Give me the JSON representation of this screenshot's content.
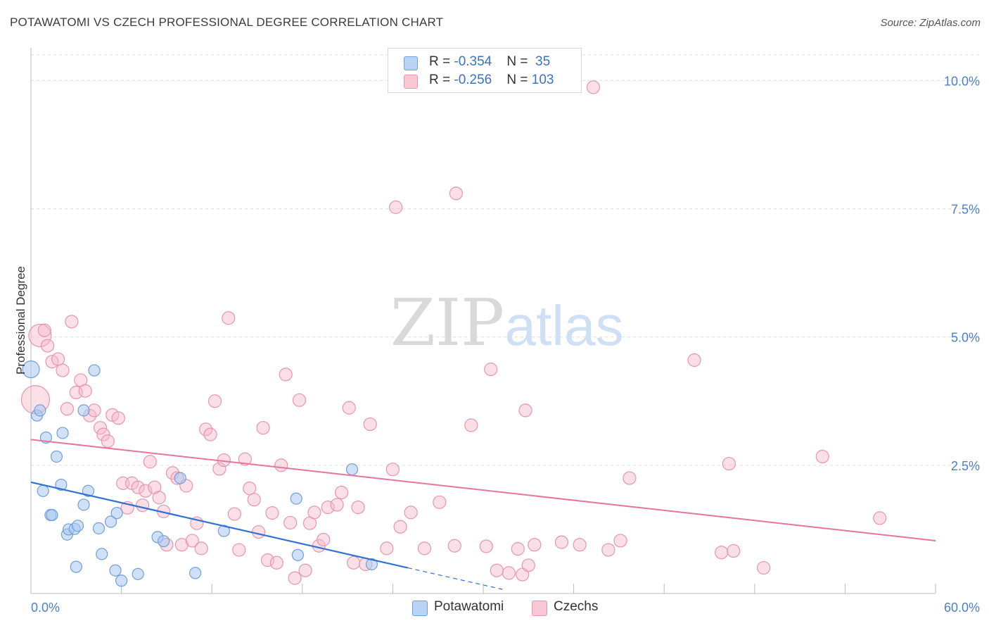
{
  "title": "POTAWATOMI VS CZECH PROFESSIONAL DEGREE CORRELATION CHART",
  "source": "Source: ZipAtlas.com",
  "watermark": {
    "zip": "ZIP",
    "atlas": "atlas"
  },
  "legend": {
    "rows": [
      {
        "r_label": "R = ",
        "r_value": "-0.354",
        "n_label": "N = ",
        "n_value": " 35"
      },
      {
        "r_label": "R = ",
        "r_value": "-0.256",
        "n_label": "N = ",
        "n_value": "103"
      }
    ],
    "bottom": [
      "Potawatomi",
      "Czechs"
    ]
  },
  "colors": {
    "potawatomi_fill": "#a9c8f0",
    "potawatomi_stroke": "#6f9fdc",
    "potawatomi_line": "#2f72d0",
    "czech_fill": "#f7b8ca",
    "czech_stroke": "#e994ae",
    "czech_line": "#e8749b",
    "tick": "#4a80c8",
    "grid": "#dddddd"
  },
  "chart_data": {
    "type": "scatter",
    "title": "POTAWATOMI VS CZECH PROFESSIONAL DEGREE CORRELATION CHART",
    "xlabel": "",
    "ylabel": "Professional Degree",
    "xlim": [
      0,
      60
    ],
    "ylim": [
      0,
      10.5
    ],
    "x_tick_labels": [
      "0.0%",
      "60.0%"
    ],
    "y_ticks": [
      2.5,
      5.0,
      7.5,
      10.0
    ],
    "y_tick_labels": [
      "2.5%",
      "5.0%",
      "7.5%",
      "10.0%"
    ],
    "series": [
      {
        "name": "Potawatomi",
        "r": -0.354,
        "n": 35,
        "trend": {
          "x0": 0,
          "y0": 2.17,
          "x1": 25.0,
          "y1": 0.5,
          "dash_to_x": 31.5
        },
        "points": [
          {
            "x": 0.0,
            "y": 4.37,
            "s": 12
          },
          {
            "x": 0.4,
            "y": 3.47
          },
          {
            "x": 0.6,
            "y": 3.57
          },
          {
            "x": 1.0,
            "y": 3.04
          },
          {
            "x": 0.8,
            "y": 2.0
          },
          {
            "x": 1.7,
            "y": 2.67
          },
          {
            "x": 2.0,
            "y": 2.12
          },
          {
            "x": 2.1,
            "y": 3.13
          },
          {
            "x": 1.3,
            "y": 1.53
          },
          {
            "x": 1.4,
            "y": 1.53
          },
          {
            "x": 2.4,
            "y": 1.15
          },
          {
            "x": 2.5,
            "y": 1.25
          },
          {
            "x": 2.9,
            "y": 1.26
          },
          {
            "x": 3.1,
            "y": 1.32
          },
          {
            "x": 3.5,
            "y": 1.73
          },
          {
            "x": 3.8,
            "y": 2.0
          },
          {
            "x": 3.5,
            "y": 3.57
          },
          {
            "x": 4.2,
            "y": 4.35
          },
          {
            "x": 4.5,
            "y": 1.27
          },
          {
            "x": 4.7,
            "y": 0.77
          },
          {
            "x": 3.0,
            "y": 0.52
          },
          {
            "x": 5.3,
            "y": 1.4
          },
          {
            "x": 5.7,
            "y": 1.57
          },
          {
            "x": 5.6,
            "y": 0.45
          },
          {
            "x": 6.0,
            "y": 0.25
          },
          {
            "x": 7.1,
            "y": 0.38
          },
          {
            "x": 8.4,
            "y": 1.1
          },
          {
            "x": 8.8,
            "y": 1.02
          },
          {
            "x": 9.9,
            "y": 2.25
          },
          {
            "x": 10.9,
            "y": 0.4
          },
          {
            "x": 12.8,
            "y": 1.22
          },
          {
            "x": 17.6,
            "y": 1.85
          },
          {
            "x": 17.7,
            "y": 0.75
          },
          {
            "x": 21.3,
            "y": 2.42
          },
          {
            "x": 22.6,
            "y": 0.57
          }
        ]
      },
      {
        "name": "Czechs",
        "r": -0.256,
        "n": 103,
        "trend": {
          "x0": 0,
          "y0": 3.0,
          "x1": 60,
          "y1": 1.03
        },
        "points": [
          {
            "x": 0.3,
            "y": 3.78,
            "s": 20
          },
          {
            "x": 0.6,
            "y": 5.03,
            "s": 16
          },
          {
            "x": 0.9,
            "y": 5.13
          },
          {
            "x": 1.1,
            "y": 4.83
          },
          {
            "x": 1.4,
            "y": 4.52
          },
          {
            "x": 1.8,
            "y": 4.57
          },
          {
            "x": 2.1,
            "y": 4.35
          },
          {
            "x": 2.4,
            "y": 3.6
          },
          {
            "x": 2.7,
            "y": 5.3
          },
          {
            "x": 3.0,
            "y": 3.92
          },
          {
            "x": 3.3,
            "y": 4.16
          },
          {
            "x": 3.6,
            "y": 3.95
          },
          {
            "x": 3.9,
            "y": 3.47
          },
          {
            "x": 4.2,
            "y": 3.57
          },
          {
            "x": 4.6,
            "y": 3.23
          },
          {
            "x": 4.8,
            "y": 3.1
          },
          {
            "x": 5.1,
            "y": 2.97
          },
          {
            "x": 5.4,
            "y": 3.48
          },
          {
            "x": 5.8,
            "y": 3.42
          },
          {
            "x": 6.1,
            "y": 2.15
          },
          {
            "x": 6.4,
            "y": 1.67
          },
          {
            "x": 6.7,
            "y": 2.15
          },
          {
            "x": 7.1,
            "y": 2.07
          },
          {
            "x": 7.4,
            "y": 1.72
          },
          {
            "x": 7.6,
            "y": 2.0
          },
          {
            "x": 7.9,
            "y": 2.57
          },
          {
            "x": 8.2,
            "y": 2.07
          },
          {
            "x": 8.5,
            "y": 1.87
          },
          {
            "x": 8.8,
            "y": 1.6
          },
          {
            "x": 9.0,
            "y": 0.95
          },
          {
            "x": 9.4,
            "y": 2.35
          },
          {
            "x": 9.7,
            "y": 2.25
          },
          {
            "x": 10.0,
            "y": 0.95
          },
          {
            "x": 10.3,
            "y": 2.1
          },
          {
            "x": 10.7,
            "y": 1.03
          },
          {
            "x": 11.0,
            "y": 1.37
          },
          {
            "x": 11.3,
            "y": 0.88
          },
          {
            "x": 11.6,
            "y": 3.2
          },
          {
            "x": 11.9,
            "y": 3.1
          },
          {
            "x": 12.2,
            "y": 3.75
          },
          {
            "x": 12.5,
            "y": 2.43
          },
          {
            "x": 12.8,
            "y": 2.6
          },
          {
            "x": 13.1,
            "y": 5.37
          },
          {
            "x": 13.5,
            "y": 1.55
          },
          {
            "x": 13.8,
            "y": 0.85
          },
          {
            "x": 14.2,
            "y": 2.62
          },
          {
            "x": 14.5,
            "y": 2.05
          },
          {
            "x": 14.8,
            "y": 1.83
          },
          {
            "x": 15.1,
            "y": 1.2
          },
          {
            "x": 15.4,
            "y": 3.23
          },
          {
            "x": 15.7,
            "y": 0.65
          },
          {
            "x": 16.0,
            "y": 1.57
          },
          {
            "x": 16.3,
            "y": 0.6
          },
          {
            "x": 16.6,
            "y": 2.5
          },
          {
            "x": 16.9,
            "y": 4.27
          },
          {
            "x": 17.2,
            "y": 1.38
          },
          {
            "x": 17.5,
            "y": 0.3
          },
          {
            "x": 17.8,
            "y": 3.77
          },
          {
            "x": 18.2,
            "y": 0.45
          },
          {
            "x": 18.5,
            "y": 1.37
          },
          {
            "x": 18.8,
            "y": 1.58
          },
          {
            "x": 19.1,
            "y": 0.93
          },
          {
            "x": 19.4,
            "y": 1.05
          },
          {
            "x": 19.7,
            "y": 1.68
          },
          {
            "x": 20.3,
            "y": 1.73
          },
          {
            "x": 20.6,
            "y": 1.97
          },
          {
            "x": 21.1,
            "y": 3.62
          },
          {
            "x": 21.4,
            "y": 0.6
          },
          {
            "x": 21.7,
            "y": 1.68
          },
          {
            "x": 22.2,
            "y": 0.57
          },
          {
            "x": 22.5,
            "y": 3.3
          },
          {
            "x": 23.6,
            "y": 0.88
          },
          {
            "x": 24.2,
            "y": 7.53
          },
          {
            "x": 24.0,
            "y": 2.42
          },
          {
            "x": 24.5,
            "y": 1.3
          },
          {
            "x": 25.2,
            "y": 1.58
          },
          {
            "x": 26.1,
            "y": 0.88
          },
          {
            "x": 27.1,
            "y": 1.78
          },
          {
            "x": 28.1,
            "y": 0.93
          },
          {
            "x": 28.2,
            "y": 7.8
          },
          {
            "x": 29.2,
            "y": 3.28
          },
          {
            "x": 30.2,
            "y": 0.92
          },
          {
            "x": 30.5,
            "y": 4.37
          },
          {
            "x": 30.9,
            "y": 0.45
          },
          {
            "x": 31.7,
            "y": 0.4
          },
          {
            "x": 32.3,
            "y": 0.87
          },
          {
            "x": 32.8,
            "y": 3.57
          },
          {
            "x": 32.6,
            "y": 0.37
          },
          {
            "x": 33.0,
            "y": 0.55
          },
          {
            "x": 33.4,
            "y": 0.95
          },
          {
            "x": 35.2,
            "y": 1.0
          },
          {
            "x": 36.4,
            "y": 0.95
          },
          {
            "x": 37.3,
            "y": 9.87
          },
          {
            "x": 38.3,
            "y": 0.85
          },
          {
            "x": 39.7,
            "y": 2.25
          },
          {
            "x": 39.1,
            "y": 1.03
          },
          {
            "x": 44.0,
            "y": 4.55
          },
          {
            "x": 45.8,
            "y": 0.8
          },
          {
            "x": 46.3,
            "y": 2.53
          },
          {
            "x": 46.6,
            "y": 0.83
          },
          {
            "x": 48.6,
            "y": 0.5
          },
          {
            "x": 52.5,
            "y": 2.67
          },
          {
            "x": 56.3,
            "y": 1.47
          }
        ]
      }
    ]
  }
}
